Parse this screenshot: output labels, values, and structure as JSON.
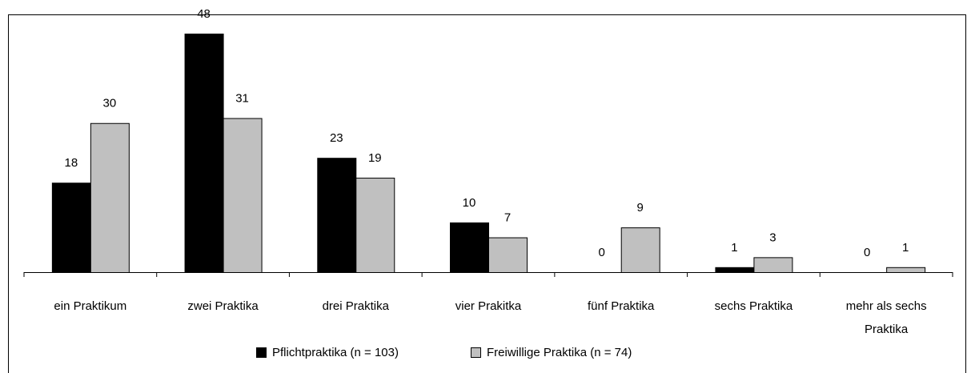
{
  "chart_data": {
    "type": "bar",
    "categories": [
      "ein Praktikum",
      "zwei Praktika",
      "drei Praktika",
      "vier Prakitka",
      "fünf Praktika",
      "sechs Praktika",
      "mehr als sechs Praktika"
    ],
    "series": [
      {
        "name": "Pflichtpraktika (n = 103)",
        "color": "#000000",
        "values": [
          18,
          48,
          23,
          10,
          0,
          1,
          0
        ]
      },
      {
        "name": "Freiwillige Praktika (n = 74)",
        "color": "#c0c0c0",
        "values": [
          30,
          31,
          19,
          7,
          9,
          3,
          1
        ]
      }
    ],
    "legend": "bottom"
  }
}
